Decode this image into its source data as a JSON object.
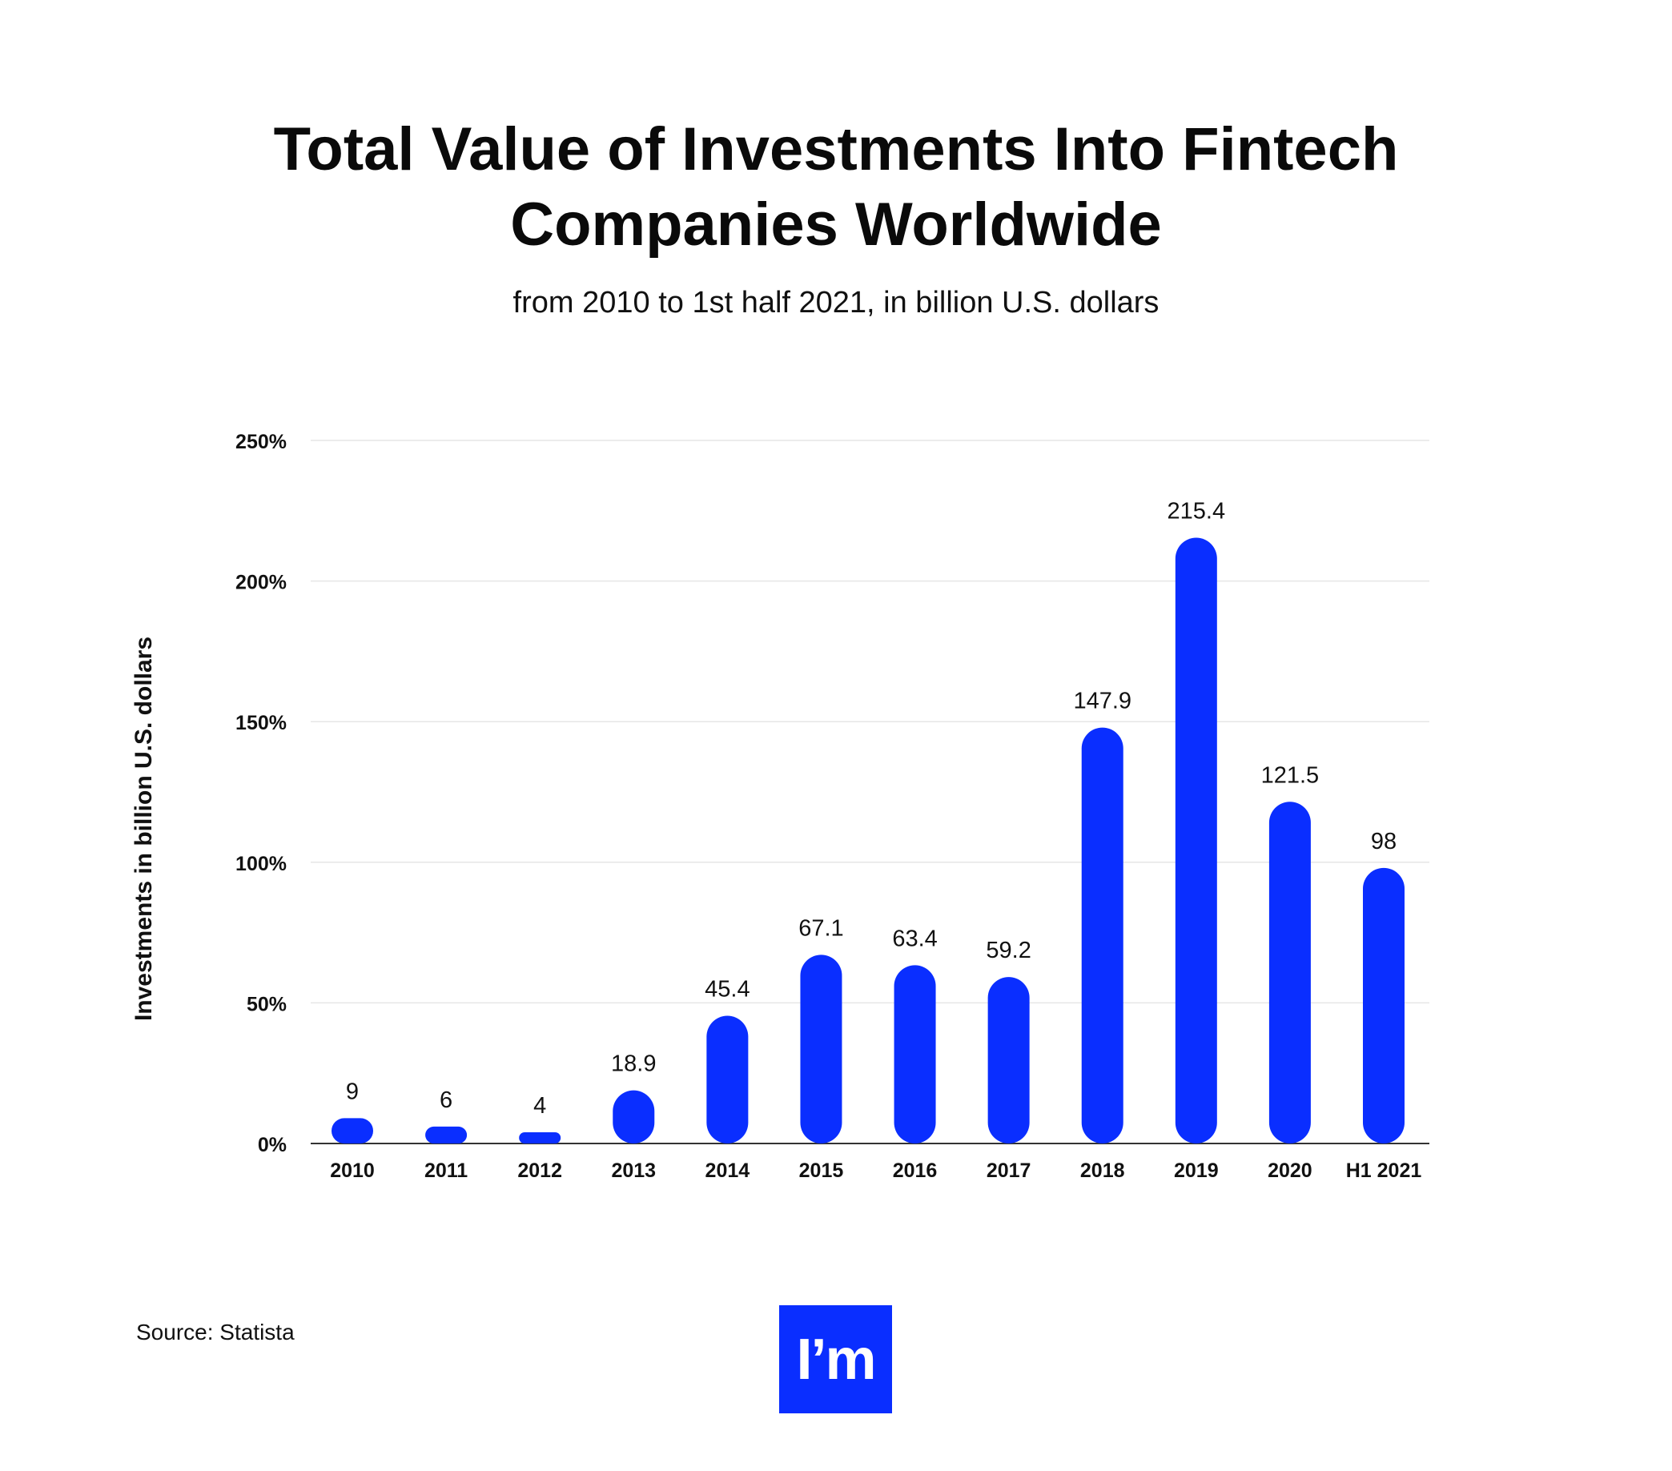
{
  "chart_data": {
    "type": "bar",
    "title": "Total Value of Investments Into Fintech Companies Worldwide",
    "subtitle": "from 2010 to 1st half 2021, in billion U.S. dollars",
    "ylabel": "Investments in billion U.S. dollars",
    "xlabel": "",
    "categories": [
      "2010",
      "2011",
      "2012",
      "2013",
      "2014",
      "2015",
      "2016",
      "2017",
      "2018",
      "2019",
      "2020",
      "H1 2021"
    ],
    "values": [
      9,
      6,
      4,
      18.9,
      45.4,
      67.1,
      63.4,
      59.2,
      147.9,
      215.4,
      121.5,
      98
    ],
    "data_labels": [
      "9",
      "6",
      "4",
      "18.9",
      "45.4",
      "67.1",
      "63.4",
      "59.2",
      "147.9",
      "215.4",
      "121.5",
      "98"
    ],
    "ylim": [
      0,
      250
    ],
    "yticks": [
      0,
      50,
      100,
      150,
      200,
      250
    ],
    "ytick_labels": [
      "0%",
      "50%",
      "100%",
      "150%",
      "200%",
      "250%"
    ],
    "grid": true,
    "legend": "none",
    "bar_color": "#0a2eff",
    "grid_color": "#e6e6e6"
  },
  "footer": {
    "source": "Source: Statista",
    "logo_text": "I’m",
    "logo_color": "#0a2eff"
  }
}
